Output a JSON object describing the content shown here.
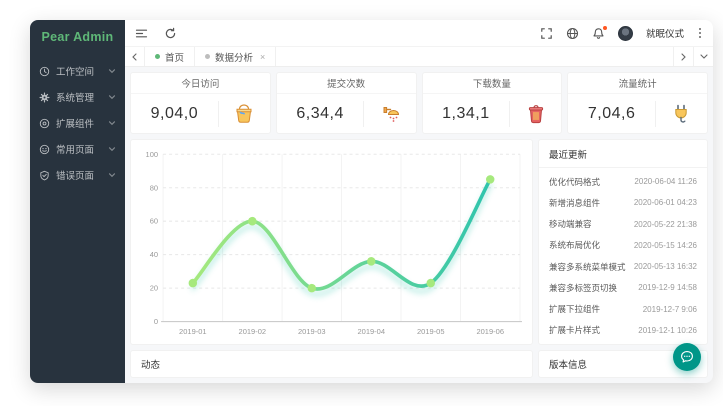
{
  "app": {
    "logo_text": "Pear Admin"
  },
  "sidebar": {
    "items": [
      {
        "label": "工作空间",
        "icon": "clock-icon"
      },
      {
        "label": "系统管理",
        "icon": "gear-icon"
      },
      {
        "label": "扩展组件",
        "icon": "plugin-icon"
      },
      {
        "label": "常用页面",
        "icon": "smiley-icon"
      },
      {
        "label": "错误页面",
        "icon": "shield-check-icon"
      }
    ]
  },
  "navbar": {
    "username": "就眠仪式"
  },
  "tabbar": {
    "tabs": [
      {
        "label": "首页",
        "active": true
      },
      {
        "label": "数据分析",
        "active": false,
        "closable": true
      }
    ],
    "close_glyph": "×"
  },
  "stats": {
    "cards": [
      {
        "title": "今日访问",
        "value": "9,04,0",
        "icon": "paint-bucket-icon"
      },
      {
        "title": "提交次数",
        "value": "6,34,4",
        "icon": "shower-icon"
      },
      {
        "title": "下载数量",
        "value": "1,34,1",
        "icon": "trash-icon"
      },
      {
        "title": "流量统计",
        "value": "7,04,6",
        "icon": "plug-icon"
      }
    ]
  },
  "chart_data": {
    "type": "line",
    "categories": [
      "2019-01",
      "2019-02",
      "2019-03",
      "2019-04",
      "2019-05",
      "2019-06"
    ],
    "values": [
      23,
      60,
      20,
      36,
      23,
      85
    ],
    "title": "",
    "xlabel": "",
    "ylabel": "",
    "ylim": [
      0,
      100
    ],
    "ytick_step": 20,
    "grid": true,
    "smooth": true,
    "legend": "none",
    "line_gradient": [
      "#a6e97d",
      "#2fc4ad"
    ],
    "marker_color": "#a6e97d",
    "glow_color": "rgba(47,196,173,0.38)"
  },
  "updates": {
    "title": "最近更新",
    "items": [
      {
        "name": "优化代码格式",
        "date": "2020-06-04 11:26"
      },
      {
        "name": "新增消息组件",
        "date": "2020-06-01 04:23"
      },
      {
        "name": "移动端兼容",
        "date": "2020-05-22 21:38"
      },
      {
        "name": "系统布局优化",
        "date": "2020-05-15 14:26"
      },
      {
        "name": "兼容多系统菜单模式",
        "date": "2020-05-13 16:32"
      },
      {
        "name": "兼容多标签页切换",
        "date": "2019-12-9 14:58"
      },
      {
        "name": "扩展下拉组件",
        "date": "2019-12-7 9:06"
      },
      {
        "name": "扩展卡片样式",
        "date": "2019-12-1 10:26"
      }
    ]
  },
  "panels": {
    "activity_title": "动态",
    "version_title": "版本信息"
  },
  "colors": {
    "sidebar_bg": "#28333e",
    "brand_green": "#5fb878",
    "inactive_dot": "#bdbdbd",
    "fab_green": "#009688",
    "badge_red": "#ff5722",
    "content_bg": "#f6f7f9"
  }
}
